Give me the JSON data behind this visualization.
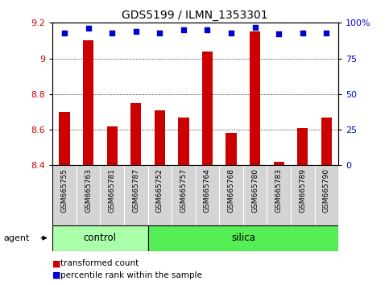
{
  "title": "GDS5199 / ILMN_1353301",
  "samples": [
    "GSM665755",
    "GSM665763",
    "GSM665781",
    "GSM665787",
    "GSM665752",
    "GSM665757",
    "GSM665764",
    "GSM665768",
    "GSM665780",
    "GSM665783",
    "GSM665789",
    "GSM665790"
  ],
  "transformed_count": [
    8.7,
    9.1,
    8.62,
    8.75,
    8.71,
    8.67,
    9.04,
    8.58,
    9.15,
    8.42,
    8.61,
    8.67
  ],
  "percentile_rank": [
    93,
    96,
    93,
    94,
    93,
    95,
    95,
    93,
    97,
    92,
    93,
    93
  ],
  "bar_base": 8.4,
  "ylim_left": [
    8.4,
    9.2
  ],
  "ylim_right": [
    0,
    100
  ],
  "yticks_left": [
    8.4,
    8.6,
    8.8,
    9.0,
    9.2
  ],
  "yticks_right": [
    0,
    25,
    50,
    75,
    100
  ],
  "ytick_labels_right": [
    "0",
    "25",
    "50",
    "75",
    "100%"
  ],
  "control_count": 4,
  "silica_count": 8,
  "control_label": "control",
  "silica_label": "silica",
  "agent_label": "agent",
  "bar_color": "#cc0000",
  "dot_color": "#0000cc",
  "control_bg": "#aaffaa",
  "silica_bg": "#55ee55",
  "sample_bg": "#d4d4d4",
  "legend_bar_label": "transformed count",
  "legend_dot_label": "percentile rank within the sample",
  "figsize": [
    4.83,
    3.54
  ],
  "dpi": 100
}
